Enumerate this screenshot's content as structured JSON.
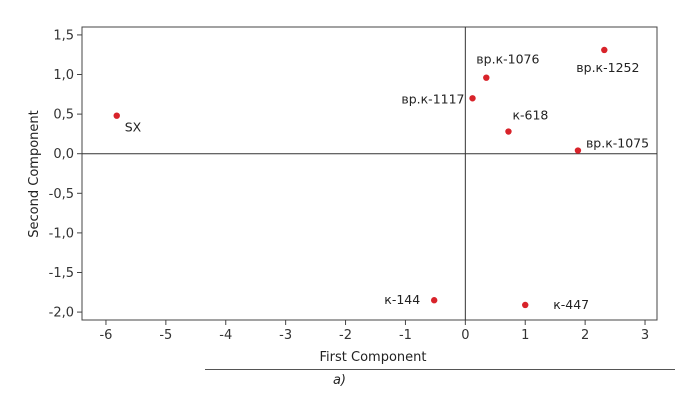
{
  "chart_data": {
    "type": "scatter",
    "xlabel": "First Component",
    "ylabel": "Second Component",
    "xlim": [
      -6.4,
      3.2
    ],
    "ylim": [
      -2.1,
      1.6
    ],
    "xticks": [
      -6,
      -5,
      -4,
      -3,
      -2,
      -1,
      0,
      1,
      2,
      3
    ],
    "yticks": [
      1.5,
      1.0,
      0.5,
      0.0,
      -0.5,
      -1.0,
      -1.5,
      -2.0
    ],
    "xtick_labels": [
      "-6",
      "-5",
      "-4",
      "-3",
      "-2",
      "-1",
      "0",
      "1",
      "2",
      "3"
    ],
    "ytick_labels": [
      "1,5",
      "1,0",
      "0,5",
      "0,0",
      "-0,5",
      "-1,0",
      "-1,5",
      "-2,0"
    ],
    "reference_lines": {
      "x": 0,
      "y": 0
    },
    "grid": false,
    "marker_color": "#d8232a",
    "points": [
      {
        "label": "SX",
        "x": -5.82,
        "y": 0.48
      },
      {
        "label": "вр.к-1117",
        "x": 0.12,
        "y": 0.7
      },
      {
        "label": "вр.к-1076",
        "x": 0.35,
        "y": 0.96
      },
      {
        "label": "к-618",
        "x": 0.72,
        "y": 0.28
      },
      {
        "label": "вр.к-1075",
        "x": 1.88,
        "y": 0.04
      },
      {
        "label": "вр.к-1252",
        "x": 2.32,
        "y": 1.31
      },
      {
        "label": "к-144",
        "x": -0.52,
        "y": -1.85
      },
      {
        "label": "к-447",
        "x": 1.0,
        "y": -1.91
      }
    ]
  },
  "caption": "a)"
}
